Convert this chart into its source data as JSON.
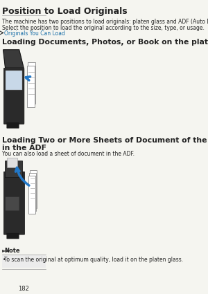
{
  "title": "Position to Load Originals",
  "body_text1": "The machine has two positions to load originals: platen glass and ADF (Auto Document Feeder).",
  "body_text2": "Select the position to load the original according to the size, type, or usage.",
  "link_text": "Originals You Can Load",
  "section1_title": "Loading Documents, Photos, or Book on the platen glass",
  "section2_title": "Loading Two or More Sheets of Document of the Same Size and Thickness\nin the ADF",
  "section2_body": "You can also load a sheet of document in the ADF.",
  "note_title": "Note",
  "note_body": "To scan the original at optimum quality, load it on the platen glass.",
  "page_number": "182",
  "bg_color": "#f5f5f0",
  "text_color": "#222222",
  "link_color": "#1a6fa8",
  "title_font_size": 9,
  "section_font_size": 7.5,
  "body_font_size": 5.5,
  "note_font_size": 5.5
}
